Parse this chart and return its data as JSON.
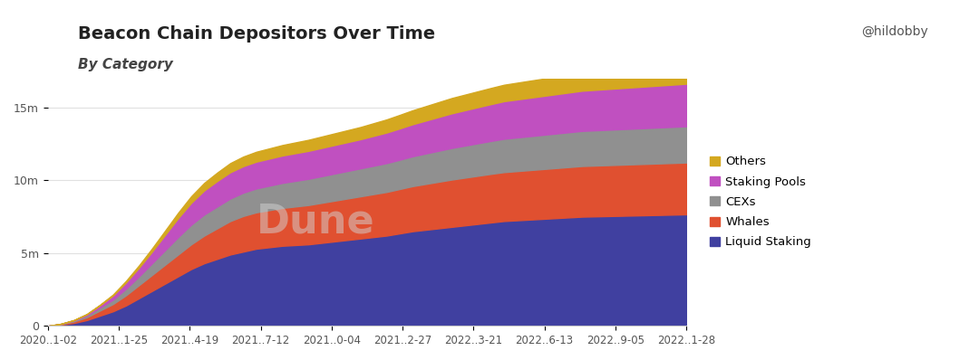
{
  "title": "Beacon Chain Depositors Over Time",
  "subtitle": "By Category",
  "x_labels": [
    "2020..1-02",
    "2021..1-25",
    "2021..4-19",
    "2021..7-12",
    "2021..0-04",
    "2021..2-27",
    "2022..3-21",
    "2022..6-13",
    "2022..9-05",
    "2022..1-28"
  ],
  "categories": [
    "Liquid Staking",
    "Whales",
    "CEXs",
    "Staking Pools",
    "Others"
  ],
  "colors": [
    "#4040a0",
    "#e05030",
    "#909090",
    "#c050c0",
    "#d4a820"
  ],
  "background_color": "#ffffff",
  "watermark": "Dune",
  "legend_labels": [
    "Liquid Staking",
    "Whales",
    "CEXs",
    "Staking Pools",
    "Others"
  ],
  "legend_colors": [
    "#4040a0",
    "#e05030",
    "#909090",
    "#c050c0",
    "#d4a820"
  ],
  "yticks": [
    0,
    5000000,
    10000000,
    15000000
  ],
  "ytick_labels": [
    "0",
    "5m",
    "10m",
    "15m"
  ],
  "ylim": [
    0,
    17000000
  ],
  "n_points": 50,
  "liquid_staking": [
    0,
    80000,
    200000,
    400000,
    700000,
    1000000,
    1400000,
    1900000,
    2400000,
    2900000,
    3400000,
    3900000,
    4300000,
    4600000,
    4900000,
    5100000,
    5300000,
    5400000,
    5500000,
    5550000,
    5600000,
    5700000,
    5800000,
    5900000,
    6000000,
    6100000,
    6200000,
    6350000,
    6500000,
    6600000,
    6700000,
    6800000,
    6900000,
    7000000,
    7100000,
    7200000,
    7250000,
    7300000,
    7350000,
    7400000,
    7450000,
    7500000,
    7520000,
    7540000,
    7560000,
    7580000,
    7600000,
    7620000,
    7640000,
    7660000
  ],
  "whales": [
    0,
    30000,
    100000,
    200000,
    350000,
    500000,
    700000,
    900000,
    1100000,
    1300000,
    1500000,
    1700000,
    1900000,
    2100000,
    2300000,
    2450000,
    2500000,
    2550000,
    2600000,
    2650000,
    2700000,
    2750000,
    2800000,
    2850000,
    2900000,
    2950000,
    3000000,
    3050000,
    3100000,
    3150000,
    3200000,
    3250000,
    3280000,
    3310000,
    3340000,
    3360000,
    3380000,
    3400000,
    3420000,
    3440000,
    3460000,
    3480000,
    3490000,
    3500000,
    3510000,
    3520000,
    3530000,
    3540000,
    3550000,
    3560000
  ],
  "cexs": [
    0,
    20000,
    60000,
    120000,
    200000,
    300000,
    450000,
    600000,
    800000,
    1000000,
    1200000,
    1350000,
    1450000,
    1500000,
    1550000,
    1600000,
    1640000,
    1680000,
    1720000,
    1760000,
    1800000,
    1830000,
    1860000,
    1890000,
    1920000,
    1950000,
    1980000,
    2010000,
    2050000,
    2090000,
    2130000,
    2170000,
    2200000,
    2230000,
    2260000,
    2290000,
    2310000,
    2330000,
    2350000,
    2370000,
    2390000,
    2410000,
    2420000,
    2430000,
    2440000,
    2450000,
    2460000,
    2470000,
    2480000,
    2490000
  ],
  "staking_pools": [
    0,
    10000,
    30000,
    80000,
    160000,
    280000,
    430000,
    600000,
    800000,
    1050000,
    1300000,
    1500000,
    1650000,
    1750000,
    1800000,
    1820000,
    1840000,
    1860000,
    1880000,
    1900000,
    1920000,
    1940000,
    1960000,
    1980000,
    2000000,
    2050000,
    2100000,
    2150000,
    2200000,
    2260000,
    2320000,
    2380000,
    2430000,
    2480000,
    2530000,
    2580000,
    2610000,
    2640000,
    2670000,
    2700000,
    2730000,
    2760000,
    2780000,
    2800000,
    2820000,
    2840000,
    2860000,
    2880000,
    2900000,
    2920000
  ],
  "others": [
    0,
    2000,
    8000,
    20000,
    40000,
    70000,
    110000,
    160000,
    220000,
    290000,
    370000,
    450000,
    520000,
    580000,
    630000,
    660000,
    680000,
    700000,
    720000,
    740000,
    760000,
    780000,
    800000,
    820000,
    840000,
    870000,
    900000,
    930000,
    960000,
    990000,
    1020000,
    1050000,
    1070000,
    1090000,
    1110000,
    1130000,
    1150000,
    1170000,
    1185000,
    1200000,
    1215000,
    1230000,
    1240000,
    1250000,
    1260000,
    1270000,
    1280000,
    1290000,
    1300000,
    1310000
  ]
}
